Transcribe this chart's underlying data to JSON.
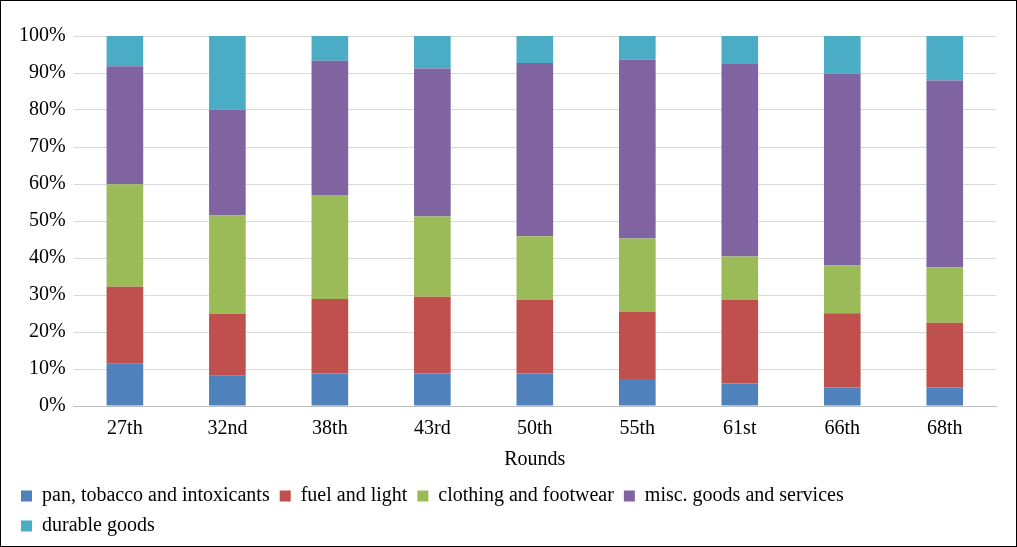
{
  "chart_data": {
    "type": "bar",
    "stacked": true,
    "xlabel": "Rounds",
    "categories": [
      "27th",
      "32nd",
      "38th",
      "43rd",
      "50th",
      "55th",
      "61st",
      "66th",
      "68th"
    ],
    "series": [
      {
        "name": "pan, tobacco and intoxicants",
        "color": "#4f81bd",
        "values": [
          11.4,
          8.2,
          8.8,
          8.8,
          8.8,
          7.3,
          6.1,
          5.0,
          5.0
        ]
      },
      {
        "name": "fuel and light",
        "color": "#c0504d",
        "values": [
          20.8,
          16.7,
          20.1,
          20.7,
          19.9,
          18.1,
          22.6,
          20.1,
          17.5
        ]
      },
      {
        "name": "clothing and footwear",
        "color": "#9bbb59",
        "values": [
          27.7,
          26.6,
          28.1,
          21.7,
          17.2,
          19.9,
          11.7,
          12.9,
          14.9
        ]
      },
      {
        "name": "misc. goods and services",
        "color": "#8064a2",
        "values": [
          31.9,
          28.6,
          36.3,
          40.0,
          46.8,
          48.3,
          52.0,
          51.8,
          50.6
        ]
      },
      {
        "name": "durable goods",
        "color": "#4bacc6",
        "values": [
          8.2,
          19.9,
          6.7,
          8.8,
          7.3,
          6.4,
          7.6,
          10.2,
          12.0
        ]
      }
    ],
    "ylim": [
      0,
      100
    ],
    "yticks": [
      {
        "value": 0,
        "label": "0%"
      },
      {
        "value": 10,
        "label": "10%"
      },
      {
        "value": 20,
        "label": "20%"
      },
      {
        "value": 30,
        "label": "30%"
      },
      {
        "value": 40,
        "label": "40%"
      },
      {
        "value": 50,
        "label": "50%"
      },
      {
        "value": 60,
        "label": "60%"
      },
      {
        "value": 70,
        "label": "70%"
      },
      {
        "value": 80,
        "label": "80%"
      },
      {
        "value": 90,
        "label": "90%"
      },
      {
        "value": 100,
        "label": "100%"
      }
    ],
    "grid": "y",
    "legend": "bottom"
  }
}
